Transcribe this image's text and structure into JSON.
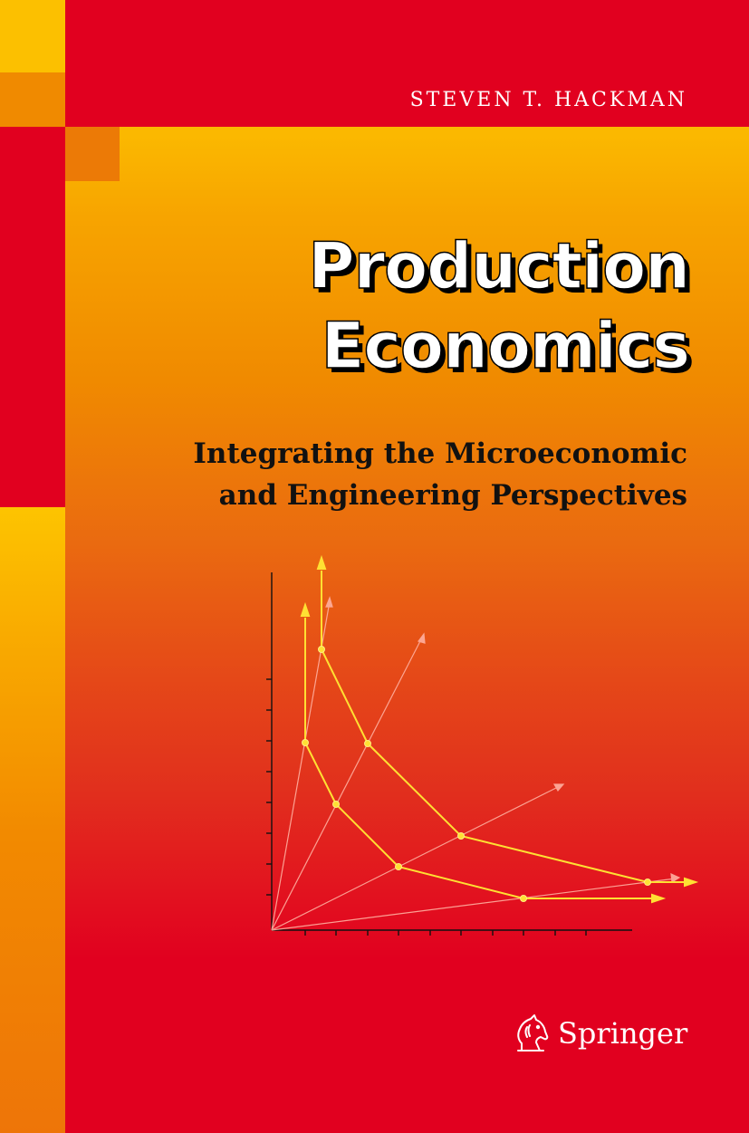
{
  "author": "STEVEN T. HACKMAN",
  "title_lines": [
    "Production",
    "Economics"
  ],
  "subtitle_lines": [
    "Integrating the Microeconomic",
    "and Engineering Perspectives"
  ],
  "publisher": "Springer",
  "logo_icon": "springer-horse-icon",
  "colors": {
    "red": "#e1001f",
    "yellow": "#fcc000",
    "orange": "#f08a00",
    "figure_line": "#ffe033"
  }
}
